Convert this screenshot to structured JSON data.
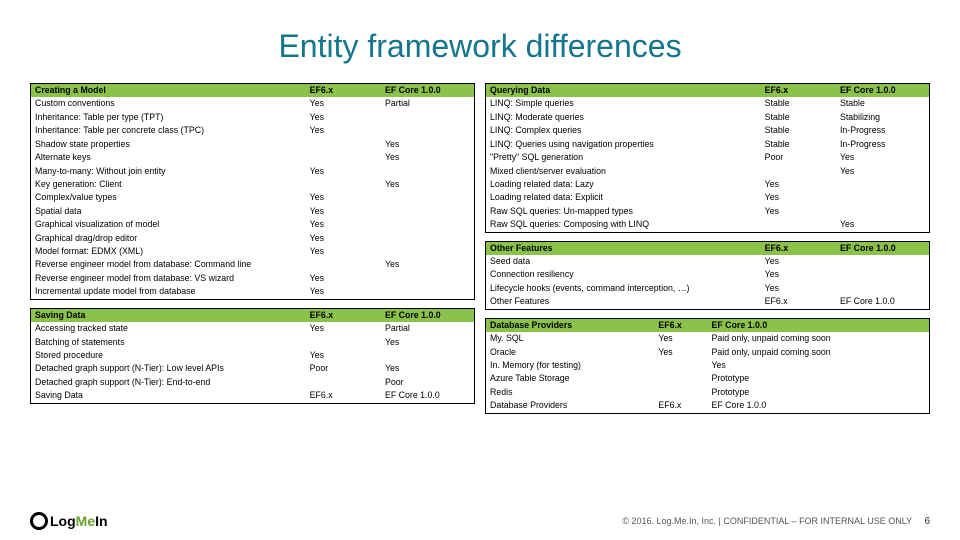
{
  "title": "Entity framework differences",
  "title_color": "#14758d",
  "header_bg": "#8bc34a",
  "border_color": "#000000",
  "tables": {
    "creating": {
      "columns": [
        "Creating a Model",
        "EF6.x",
        "EF Core 1.0.0"
      ],
      "rows": [
        [
          "Custom conventions",
          "Yes",
          "Partial"
        ],
        [
          "Inheritance: Table per type (TPT)",
          "Yes",
          ""
        ],
        [
          "Inheritance: Table per concrete class (TPC)",
          "Yes",
          ""
        ],
        [
          "Shadow state properties",
          "",
          "Yes"
        ],
        [
          "Alternate keys",
          "",
          "Yes"
        ],
        [
          "Many-to-many: Without join entity",
          "Yes",
          ""
        ],
        [
          "Key generation: Client",
          "",
          "Yes"
        ],
        [
          "Complex/value types",
          "Yes",
          ""
        ],
        [
          "Spatial data",
          "Yes",
          ""
        ],
        [
          "Graphical visualization of model",
          "Yes",
          ""
        ],
        [
          "Graphical drag/drop editor",
          "Yes",
          ""
        ],
        [
          "Model format: EDMX (XML)",
          "Yes",
          ""
        ],
        [
          "Reverse engineer model from database: Command line",
          "",
          "Yes"
        ],
        [
          "Reverse engineer model from database: VS wizard",
          "Yes",
          ""
        ],
        [
          "Incremental update model from database",
          "Yes",
          ""
        ]
      ]
    },
    "saving": {
      "columns": [
        "Saving Data",
        "EF6.x",
        "EF Core 1.0.0"
      ],
      "rows": [
        [
          "Accessing tracked state",
          "Yes",
          "Partial"
        ],
        [
          "Batching of statements",
          "",
          "Yes"
        ],
        [
          "Stored procedure",
          "Yes",
          ""
        ],
        [
          "Detached graph support (N-Tier): Low level APIs",
          "Poor",
          "Yes"
        ],
        [
          "Detached graph support (N-Tier): End-to-end",
          "",
          "Poor"
        ],
        [
          "Saving Data",
          "EF6.x",
          "EF Core 1.0.0"
        ]
      ]
    },
    "querying": {
      "columns": [
        "Querying Data",
        "EF6.x",
        "EF Core 1.0.0"
      ],
      "rows": [
        [
          "LINQ: Simple queries",
          "Stable",
          "Stable"
        ],
        [
          "LINQ: Moderate queries",
          "Stable",
          "Stabilizing"
        ],
        [
          "LINQ: Complex queries",
          "Stable",
          "In-Progress"
        ],
        [
          "LINQ: Queries using navigation properties",
          "Stable",
          "In-Progress"
        ],
        [
          "\"Pretty\" SQL generation",
          "Poor",
          "Yes"
        ],
        [
          "Mixed client/server evaluation",
          "",
          "Yes"
        ],
        [
          "Loading related data: Lazy",
          "Yes",
          ""
        ],
        [
          "Loading related data: Explicit",
          "Yes",
          ""
        ],
        [
          "Raw SQL queries: Un-mapped types",
          "Yes",
          ""
        ],
        [
          "Raw SQL queries: Composing with LINQ",
          "",
          "Yes"
        ]
      ]
    },
    "other": {
      "columns": [
        "Other Features",
        "EF6.x",
        "EF Core 1.0.0"
      ],
      "rows": [
        [
          "Seed data",
          "Yes",
          ""
        ],
        [
          "Connection resiliency",
          "Yes",
          ""
        ],
        [
          "Lifecycle hooks (events, command interception, …)",
          "Yes",
          ""
        ],
        [
          "Other Features",
          "EF6.x",
          "EF Core 1.0.0"
        ]
      ]
    },
    "providers": {
      "columns": [
        "Database Providers",
        "EF6.x",
        "EF Core 1.0.0"
      ],
      "rows": [
        [
          "My. SQL",
          "Yes",
          "Paid only, unpaid coming soon"
        ],
        [
          "Oracle",
          "Yes",
          "Paid only, unpaid coming soon"
        ],
        [
          "In. Memory (for testing)",
          "",
          "Yes"
        ],
        [
          "Azure Table Storage",
          "",
          "Prototype"
        ],
        [
          "Redis",
          "",
          "Prototype"
        ],
        [
          "Database Providers",
          "EF6.x",
          "EF Core 1.0.0"
        ]
      ]
    }
  },
  "footer": {
    "copyright": "© 2016. Log.Me.In, Inc. | CONFIDENTIAL – FOR INTERNAL USE ONLY",
    "page": "6",
    "logo_main": "Log",
    "logo_accent": "Me",
    "logo_end": "In"
  }
}
